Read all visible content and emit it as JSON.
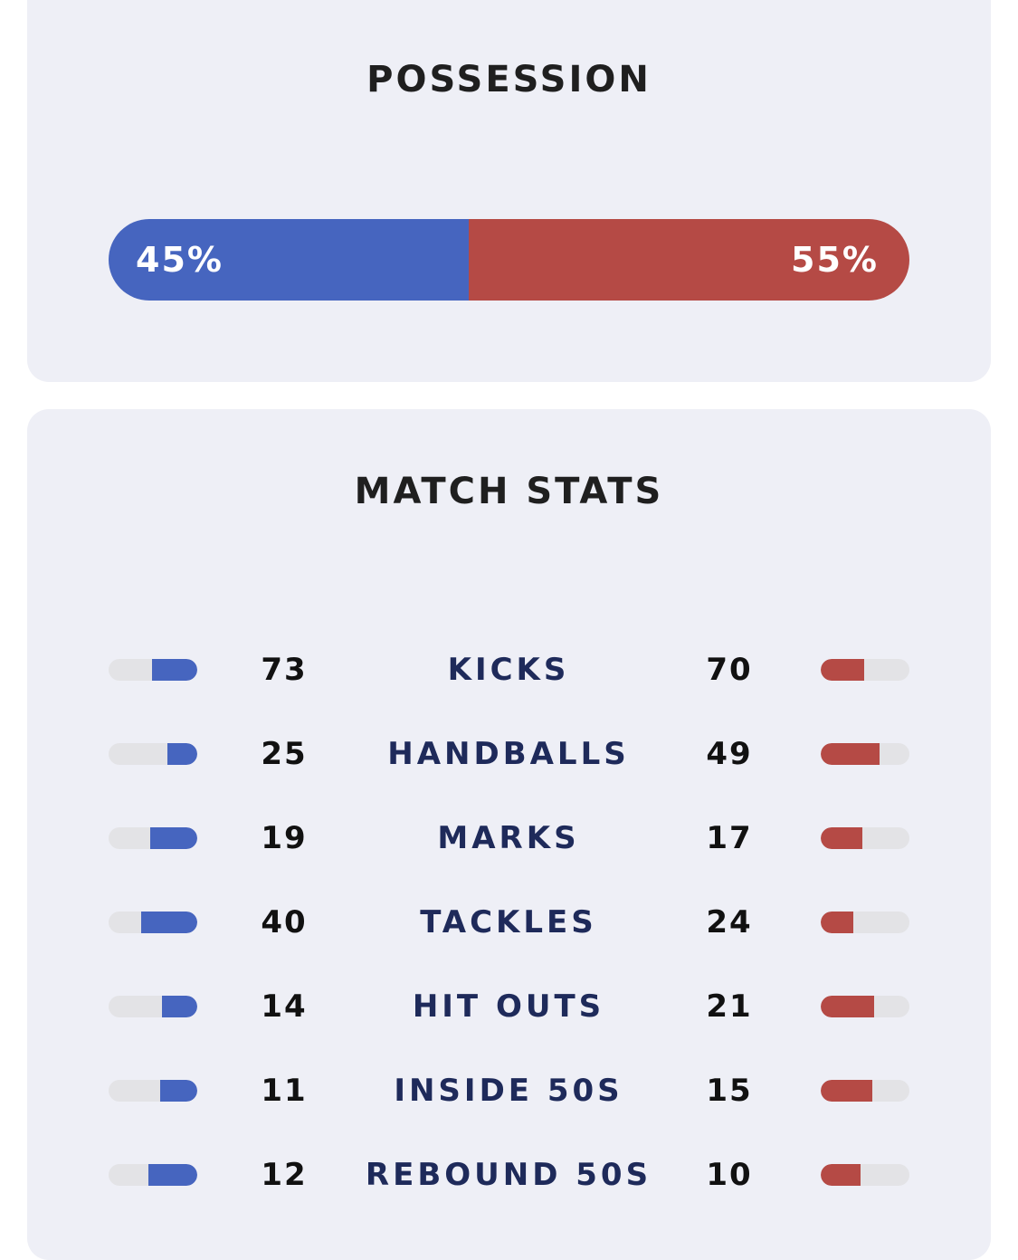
{
  "possession": {
    "title": "POSSESSION",
    "home": {
      "label": "45%",
      "value": 45
    },
    "away": {
      "label": "55%",
      "value": 55
    }
  },
  "match_stats": {
    "title": "MATCH STATS",
    "rows": [
      {
        "label": "KICKS",
        "home": "73",
        "away": "70",
        "home_fill": 0.51,
        "away_fill": 0.49
      },
      {
        "label": "HANDBALLS",
        "home": "25",
        "away": "49",
        "home_fill": 0.34,
        "away_fill": 0.66
      },
      {
        "label": "MARKS",
        "home": "19",
        "away": "17",
        "home_fill": 0.53,
        "away_fill": 0.47
      },
      {
        "label": "TACKLES",
        "home": "40",
        "away": "24",
        "home_fill": 0.63,
        "away_fill": 0.37
      },
      {
        "label": "HIT OUTS",
        "home": "14",
        "away": "21",
        "home_fill": 0.4,
        "away_fill": 0.6
      },
      {
        "label": "INSIDE 50S",
        "home": "11",
        "away": "15",
        "home_fill": 0.42,
        "away_fill": 0.58
      },
      {
        "label": "REBOUND 50S",
        "home": "12",
        "away": "10",
        "home_fill": 0.55,
        "away_fill": 0.45
      }
    ]
  },
  "colors": {
    "home": "#4665bf",
    "away": "#b54a45",
    "track": "#e3e3e6",
    "card": "#eeeff6"
  }
}
